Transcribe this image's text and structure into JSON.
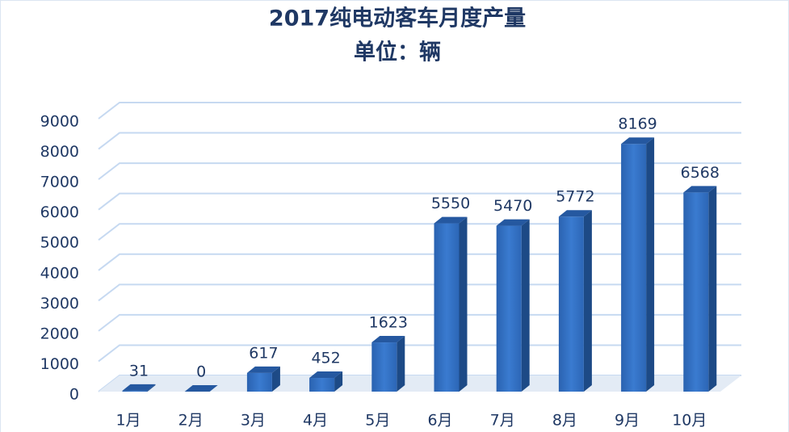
{
  "chart_data": {
    "type": "bar",
    "title": "2017纯电动客车月度产量",
    "subtitle": "单位：辆",
    "categories": [
      "1月",
      "2月",
      "3月",
      "4月",
      "5月",
      "6月",
      "7月",
      "8月",
      "9月",
      "10月"
    ],
    "values": [
      31,
      0,
      617,
      452,
      1623,
      5550,
      5470,
      5772,
      8169,
      6568
    ],
    "color": "#2e6bc0",
    "ylim": [
      0,
      9000
    ],
    "yticks": [
      0,
      1000,
      2000,
      3000,
      4000,
      5000,
      6000,
      7000,
      8000,
      9000
    ],
    "grid": true
  }
}
